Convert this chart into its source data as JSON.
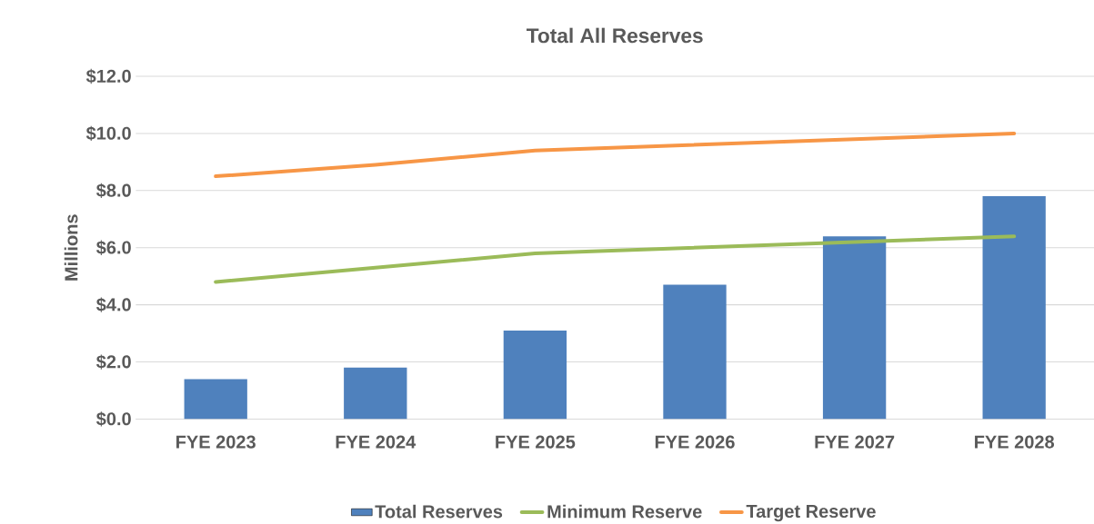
{
  "chart_data": {
    "type": "bar",
    "title": "Total All Reserves",
    "ylabel": "Millions",
    "categories": [
      "FYE 2023",
      "FYE 2024",
      "FYE 2025",
      "FYE 2026",
      "FYE 2027",
      "FYE 2028"
    ],
    "series": [
      {
        "name": "Total Reserves",
        "color": "#4f81bd",
        "values": [
          1.4,
          1.8,
          3.1,
          4.7,
          6.4,
          7.8
        ]
      },
      {
        "name": "Minimum Reserve",
        "type": "line",
        "color": "#9bbb59",
        "values": [
          4.8,
          5.3,
          5.8,
          6.0,
          6.2,
          6.4
        ]
      },
      {
        "name": "Target Reserve",
        "type": "line",
        "color": "#f79646",
        "values": [
          8.5,
          8.9,
          9.4,
          9.6,
          9.8,
          10.0
        ]
      }
    ],
    "ylim": [
      0,
      12
    ],
    "yticks": [
      {
        "value": 0,
        "label": "$0.0"
      },
      {
        "value": 2,
        "label": "$2.0"
      },
      {
        "value": 4,
        "label": "$4.0"
      },
      {
        "value": 6,
        "label": "$6.0"
      },
      {
        "value": 8,
        "label": "$8.0"
      },
      {
        "value": 10,
        "label": "$10.0"
      },
      {
        "value": 12,
        "label": "$12.0"
      }
    ],
    "grid": "y",
    "legend": "bottom",
    "marker": "none",
    "line_style": "solid"
  }
}
